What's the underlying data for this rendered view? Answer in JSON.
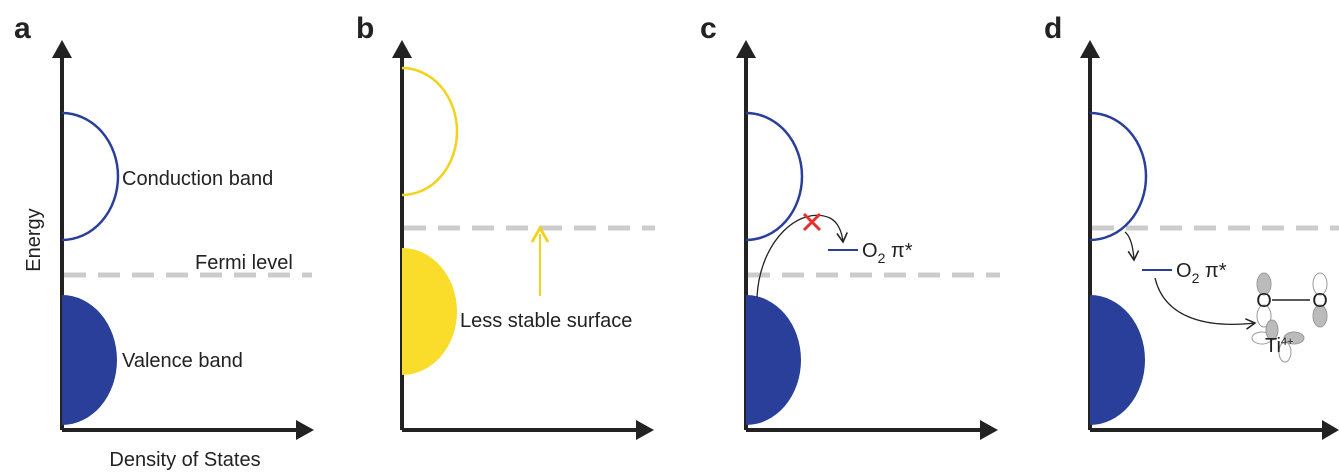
{
  "panels": [
    {
      "label": "a",
      "y_axis_label": "Energy",
      "x_axis_label": "Density of States",
      "conduction": "Conduction band",
      "fermi": "Fermi level",
      "valence": "Valence band"
    },
    {
      "label": "b",
      "annotation": "Less stable surface"
    },
    {
      "label": "c",
      "level": {
        "base": "O",
        "sub": "2",
        "rest": " π*"
      }
    },
    {
      "label": "d",
      "level": {
        "base": "O",
        "sub": "2",
        "rest": " π*"
      },
      "molecule": {
        "atoms": [
          "O",
          "O"
        ],
        "metal": {
          "base": "Ti",
          "sup": "4+"
        }
      }
    }
  ]
}
